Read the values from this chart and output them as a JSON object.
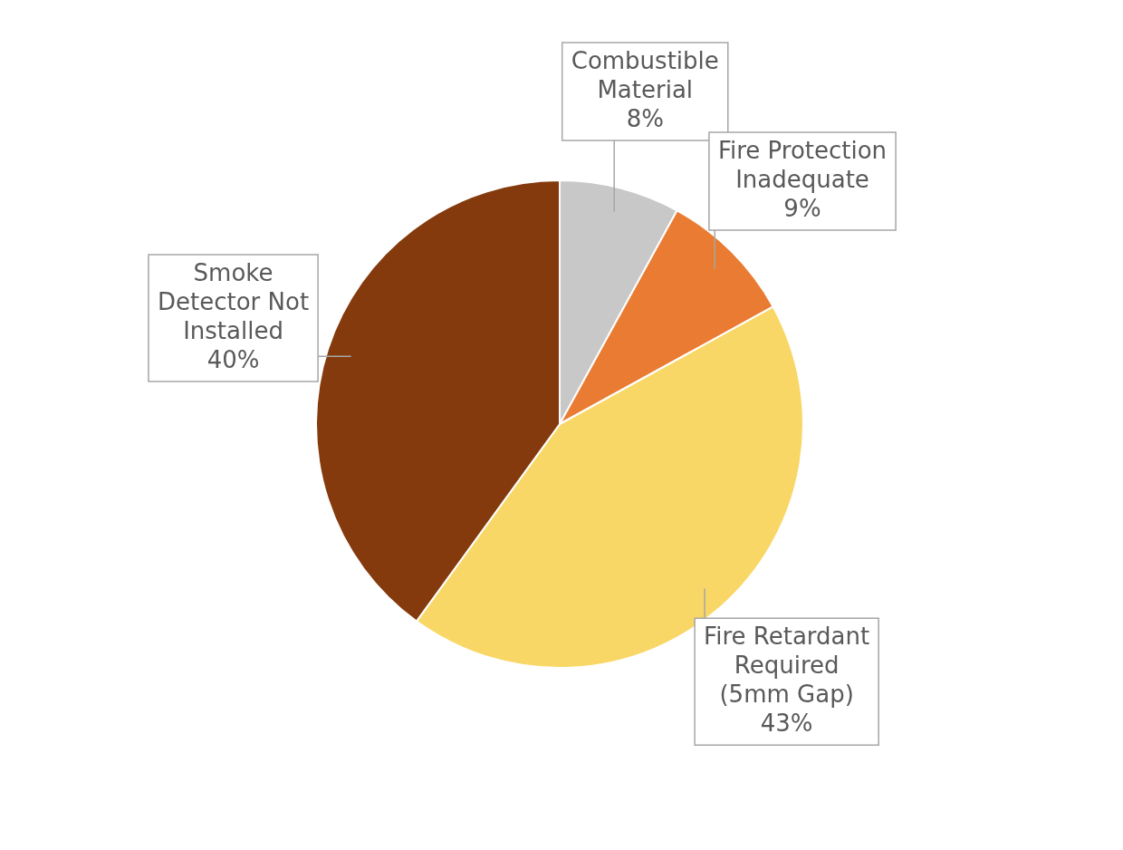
{
  "chart_data": {
    "type": "pie",
    "categories": [
      "Combustible Material",
      "Fire Protection Inadequate",
      "Fire Retardant Required (5mm Gap)",
      "Smoke Detector Not Installed"
    ],
    "values": [
      8,
      9,
      43,
      40
    ],
    "value_labels": [
      "8%",
      "9%",
      "43%",
      "40%"
    ],
    "colors": [
      "#c8c8c8",
      "#ea7b33",
      "#f9d767",
      "#843a0c"
    ],
    "legend": false
  }
}
